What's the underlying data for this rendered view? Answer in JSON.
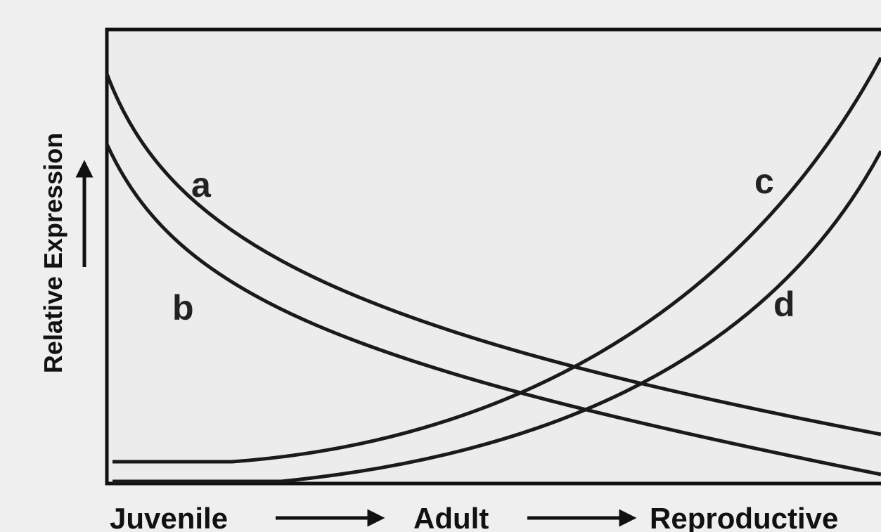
{
  "y_axis_label": "Relative Expression",
  "curves": [
    {
      "label": "a"
    },
    {
      "label": "b"
    },
    {
      "label": "c"
    },
    {
      "label": "d"
    }
  ],
  "stages": [
    "Juvenile",
    "Adult",
    "Reproductive"
  ]
}
